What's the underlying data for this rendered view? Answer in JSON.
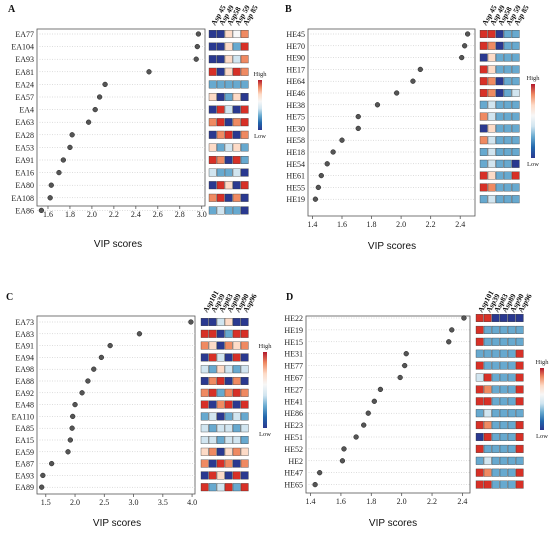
{
  "color_scale": {
    "high_label": "High",
    "low_label": "Low",
    "gradient": [
      "#b2182b",
      "#ef8a62",
      "#fddbc7",
      "#f7f7f7",
      "#d1e5f0",
      "#67a9cf",
      "#2166ac",
      "#2a3990"
    ]
  },
  "chart_data": [
    {
      "panel_label": "A",
      "type": "scatter",
      "xlabel": "VIP scores",
      "xticks": [
        1.6,
        1.8,
        2.0,
        2.2,
        2.4,
        2.6,
        2.8,
        3.0
      ],
      "xlim": [
        1.5,
        3.03
      ],
      "heat_columns": [
        "Asp 45",
        "Asp 49",
        "Asp58",
        "Asp 59",
        "Asp 85"
      ],
      "points": [
        {
          "label": "EA77",
          "vip": 2.97,
          "heat": [
            "#2a3990",
            "#2a3990",
            "#fddbc7",
            "#f7f7f7",
            "#ef8a62"
          ]
        },
        {
          "label": "EA104",
          "vip": 2.96,
          "heat": [
            "#2a3990",
            "#2a3990",
            "#fddbc7",
            "#67a9cf",
            "#d73027"
          ]
        },
        {
          "label": "EA93",
          "vip": 2.95,
          "heat": [
            "#2a3990",
            "#2a3990",
            "#fddbc7",
            "#d1e5f0",
            "#ef8a62"
          ]
        },
        {
          "label": "EA81",
          "vip": 2.52,
          "heat": [
            "#d73027",
            "#2a3990",
            "#fddbc7",
            "#d73027",
            "#ef8a62"
          ]
        },
        {
          "label": "EA24",
          "vip": 2.12,
          "heat": [
            "#67a9cf",
            "#67a9cf",
            "#67a9cf",
            "#67a9cf",
            "#67a9cf"
          ]
        },
        {
          "label": "EA57",
          "vip": 2.07,
          "heat": [
            "#fddbc7",
            "#2a3990",
            "#67a9cf",
            "#fddbc7",
            "#2a3990"
          ]
        },
        {
          "label": "EA4",
          "vip": 2.03,
          "heat": [
            "#2a3990",
            "#d73027",
            "#d1e5f0",
            "#2a3990",
            "#d73027"
          ]
        },
        {
          "label": "EA63",
          "vip": 1.97,
          "heat": [
            "#ef8a62",
            "#d73027",
            "#2a3990",
            "#ef8a62",
            "#d73027"
          ]
        },
        {
          "label": "EA28",
          "vip": 1.82,
          "heat": [
            "#2a3990",
            "#ef8a62",
            "#d73027",
            "#2a3990",
            "#ef8a62"
          ]
        },
        {
          "label": "EA53",
          "vip": 1.8,
          "heat": [
            "#fddbc7",
            "#67a9cf",
            "#d1e5f0",
            "#fddbc7",
            "#67a9cf"
          ]
        },
        {
          "label": "EA91",
          "vip": 1.74,
          "heat": [
            "#d73027",
            "#ef8a62",
            "#2a3990",
            "#d73027",
            "#67a9cf"
          ]
        },
        {
          "label": "EA16",
          "vip": 1.7,
          "heat": [
            "#d1e5f0",
            "#67a9cf",
            "#67a9cf",
            "#d1e5f0",
            "#2a3990"
          ]
        },
        {
          "label": "EA80",
          "vip": 1.63,
          "heat": [
            "#2a3990",
            "#d73027",
            "#fddbc7",
            "#2a3990",
            "#d73027"
          ]
        },
        {
          "label": "EA108",
          "vip": 1.62,
          "heat": [
            "#ef8a62",
            "#d73027",
            "#2a3990",
            "#ef8a62",
            "#2a3990"
          ]
        },
        {
          "label": "EA86",
          "vip": 1.54,
          "heat": [
            "#67a9cf",
            "#d1e5f0",
            "#67a9cf",
            "#67a9cf",
            "#2a3990"
          ]
        }
      ]
    },
    {
      "panel_label": "B",
      "type": "scatter",
      "xlabel": "VIP scores",
      "xticks": [
        1.4,
        1.6,
        1.8,
        2.0,
        2.2,
        2.4
      ],
      "xlim": [
        1.37,
        2.5
      ],
      "heat_columns": [
        "Asp 45",
        "Asp 49",
        "Asp58",
        "Asp 59",
        "Asp 85"
      ],
      "points": [
        {
          "label": "HE45",
          "vip": 2.45,
          "heat": [
            "#d73027",
            "#d73027",
            "#2a3990",
            "#67a9cf",
            "#67a9cf"
          ]
        },
        {
          "label": "HE70",
          "vip": 2.43,
          "heat": [
            "#d73027",
            "#ef8a62",
            "#2a3990",
            "#67a9cf",
            "#67a9cf"
          ]
        },
        {
          "label": "HE90",
          "vip": 2.41,
          "heat": [
            "#2a3990",
            "#fddbc7",
            "#67a9cf",
            "#67a9cf",
            "#67a9cf"
          ]
        },
        {
          "label": "HE17",
          "vip": 2.13,
          "heat": [
            "#d73027",
            "#fddbc7",
            "#67a9cf",
            "#67a9cf",
            "#67a9cf"
          ]
        },
        {
          "label": "HE64",
          "vip": 2.08,
          "heat": [
            "#d73027",
            "#ef8a62",
            "#2a3990",
            "#67a9cf",
            "#67a9cf"
          ]
        },
        {
          "label": "HE46",
          "vip": 1.97,
          "heat": [
            "#d73027",
            "#ef8a62",
            "#2a3990",
            "#67a9cf",
            "#d1e5f0"
          ]
        },
        {
          "label": "HE38",
          "vip": 1.84,
          "heat": [
            "#67a9cf",
            "#d1e5f0",
            "#67a9cf",
            "#67a9cf",
            "#67a9cf"
          ]
        },
        {
          "label": "HE75",
          "vip": 1.71,
          "heat": [
            "#ef8a62",
            "#d1e5f0",
            "#67a9cf",
            "#67a9cf",
            "#67a9cf"
          ]
        },
        {
          "label": "HE30",
          "vip": 1.71,
          "heat": [
            "#2a3990",
            "#fddbc7",
            "#67a9cf",
            "#67a9cf",
            "#67a9cf"
          ]
        },
        {
          "label": "HE58",
          "vip": 1.6,
          "heat": [
            "#ef8a62",
            "#d1e5f0",
            "#67a9cf",
            "#67a9cf",
            "#67a9cf"
          ]
        },
        {
          "label": "HE18",
          "vip": 1.54,
          "heat": [
            "#67a9cf",
            "#d1e5f0",
            "#67a9cf",
            "#67a9cf",
            "#67a9cf"
          ]
        },
        {
          "label": "HE54",
          "vip": 1.5,
          "heat": [
            "#67a9cf",
            "#d1e5f0",
            "#67a9cf",
            "#67a9cf",
            "#2a3990"
          ]
        },
        {
          "label": "HE61",
          "vip": 1.46,
          "heat": [
            "#d73027",
            "#fddbc7",
            "#67a9cf",
            "#67a9cf",
            "#d73027"
          ]
        },
        {
          "label": "HE55",
          "vip": 1.44,
          "heat": [
            "#d73027",
            "#ef8a62",
            "#67a9cf",
            "#67a9cf",
            "#67a9cf"
          ]
        },
        {
          "label": "HE19",
          "vip": 1.42,
          "heat": [
            "#67a9cf",
            "#d1e5f0",
            "#67a9cf",
            "#67a9cf",
            "#67a9cf"
          ]
        }
      ]
    },
    {
      "panel_label": "C",
      "type": "scatter",
      "xlabel": "VIP scores",
      "xticks": [
        1.5,
        2.0,
        2.5,
        3.0,
        3.5,
        4.0
      ],
      "xlim": [
        1.35,
        4.05
      ],
      "heat_columns": [
        "Asp101",
        "Asp39",
        "Asp83",
        "Asp89",
        "Asp90",
        "Asp96"
      ],
      "points": [
        {
          "label": "EA73",
          "vip": 3.98,
          "heat": [
            "#2a3990",
            "#2a3990",
            "#d1e5f0",
            "#fddbc7",
            "#2a3990",
            "#2a3990"
          ]
        },
        {
          "label": "EA83",
          "vip": 3.1,
          "heat": [
            "#d73027",
            "#d73027",
            "#2a3990",
            "#67a9cf",
            "#d73027",
            "#d73027"
          ]
        },
        {
          "label": "EA91",
          "vip": 2.6,
          "heat": [
            "#ef8a62",
            "#fddbc7",
            "#2a3990",
            "#ef8a62",
            "#fddbc7",
            "#ef8a62"
          ]
        },
        {
          "label": "EA94",
          "vip": 2.45,
          "heat": [
            "#2a3990",
            "#d73027",
            "#d1e5f0",
            "#2a3990",
            "#d73027",
            "#2a3990"
          ]
        },
        {
          "label": "EA98",
          "vip": 2.32,
          "heat": [
            "#d1e5f0",
            "#67a9cf",
            "#fddbc7",
            "#d1e5f0",
            "#67a9cf",
            "#d1e5f0"
          ]
        },
        {
          "label": "EA88",
          "vip": 2.22,
          "heat": [
            "#2a3990",
            "#ef8a62",
            "#d73027",
            "#2a3990",
            "#ef8a62",
            "#2a3990"
          ]
        },
        {
          "label": "EA92",
          "vip": 2.12,
          "heat": [
            "#ef8a62",
            "#d73027",
            "#67a9cf",
            "#ef8a62",
            "#d73027",
            "#ef8a62"
          ]
        },
        {
          "label": "EA48",
          "vip": 2.0,
          "heat": [
            "#d73027",
            "#2a3990",
            "#ef8a62",
            "#d73027",
            "#2a3990",
            "#d73027"
          ]
        },
        {
          "label": "EA110",
          "vip": 1.96,
          "heat": [
            "#67a9cf",
            "#d1e5f0",
            "#2a3990",
            "#67a9cf",
            "#d1e5f0",
            "#67a9cf"
          ]
        },
        {
          "label": "EA85",
          "vip": 1.95,
          "heat": [
            "#d1e5f0",
            "#67a9cf",
            "#d1e5f0",
            "#d1e5f0",
            "#67a9cf",
            "#d1e5f0"
          ]
        },
        {
          "label": "EA15",
          "vip": 1.92,
          "heat": [
            "#d1e5f0",
            "#d1e5f0",
            "#67a9cf",
            "#d1e5f0",
            "#d1e5f0",
            "#67a9cf"
          ]
        },
        {
          "label": "EA59",
          "vip": 1.88,
          "heat": [
            "#fddbc7",
            "#ef8a62",
            "#2a3990",
            "#fddbc7",
            "#ef8a62",
            "#fddbc7"
          ]
        },
        {
          "label": "EA87",
          "vip": 1.6,
          "heat": [
            "#ef8a62",
            "#2a3990",
            "#d73027",
            "#ef8a62",
            "#2a3990",
            "#ef8a62"
          ]
        },
        {
          "label": "EA93",
          "vip": 1.45,
          "heat": [
            "#2a3990",
            "#d73027",
            "#fddbc7",
            "#2a3990",
            "#d73027",
            "#2a3990"
          ]
        },
        {
          "label": "EA89",
          "vip": 1.43,
          "heat": [
            "#d73027",
            "#67a9cf",
            "#d1e5f0",
            "#d73027",
            "#67a9cf",
            "#d73027"
          ]
        }
      ]
    },
    {
      "panel_label": "D",
      "type": "scatter",
      "xlabel": "VIP scores",
      "xticks": [
        1.4,
        1.6,
        1.8,
        2.0,
        2.2,
        2.4
      ],
      "xlim": [
        1.37,
        2.45
      ],
      "heat_columns": [
        "Asp101",
        "Asp39",
        "Asp83",
        "Asp89",
        "Asp90",
        "Asp96"
      ],
      "points": [
        {
          "label": "HE22",
          "vip": 2.41,
          "heat": [
            "#d73027",
            "#d73027",
            "#2a3990",
            "#2a3990",
            "#2a3990",
            "#2a3990"
          ]
        },
        {
          "label": "HE19",
          "vip": 2.33,
          "heat": [
            "#d73027",
            "#67a9cf",
            "#67a9cf",
            "#67a9cf",
            "#67a9cf",
            "#67a9cf"
          ]
        },
        {
          "label": "HE15",
          "vip": 2.31,
          "heat": [
            "#d73027",
            "#67a9cf",
            "#67a9cf",
            "#67a9cf",
            "#67a9cf",
            "#67a9cf"
          ]
        },
        {
          "label": "HE31",
          "vip": 2.03,
          "heat": [
            "#67a9cf",
            "#67a9cf",
            "#67a9cf",
            "#67a9cf",
            "#67a9cf",
            "#d73027"
          ]
        },
        {
          "label": "HE77",
          "vip": 2.02,
          "heat": [
            "#d73027",
            "#67a9cf",
            "#67a9cf",
            "#67a9cf",
            "#67a9cf",
            "#d73027"
          ]
        },
        {
          "label": "HE67",
          "vip": 1.99,
          "heat": [
            "#d1e5f0",
            "#d73027",
            "#67a9cf",
            "#67a9cf",
            "#67a9cf",
            "#d73027"
          ]
        },
        {
          "label": "HE27",
          "vip": 1.86,
          "heat": [
            "#d73027",
            "#ef8a62",
            "#67a9cf",
            "#67a9cf",
            "#67a9cf",
            "#d73027"
          ]
        },
        {
          "label": "HE41",
          "vip": 1.82,
          "heat": [
            "#d73027",
            "#d73027",
            "#67a9cf",
            "#67a9cf",
            "#67a9cf",
            "#d73027"
          ]
        },
        {
          "label": "HE86",
          "vip": 1.78,
          "heat": [
            "#67a9cf",
            "#d1e5f0",
            "#67a9cf",
            "#67a9cf",
            "#67a9cf",
            "#67a9cf"
          ]
        },
        {
          "label": "HE23",
          "vip": 1.75,
          "heat": [
            "#d73027",
            "#ef8a62",
            "#67a9cf",
            "#67a9cf",
            "#67a9cf",
            "#d73027"
          ]
        },
        {
          "label": "HE51",
          "vip": 1.7,
          "heat": [
            "#2a3990",
            "#d73027",
            "#67a9cf",
            "#67a9cf",
            "#67a9cf",
            "#d73027"
          ]
        },
        {
          "label": "HE52",
          "vip": 1.62,
          "heat": [
            "#d73027",
            "#67a9cf",
            "#67a9cf",
            "#67a9cf",
            "#67a9cf",
            "#d73027"
          ]
        },
        {
          "label": "HE2",
          "vip": 1.61,
          "heat": [
            "#67a9cf",
            "#d1e5f0",
            "#67a9cf",
            "#67a9cf",
            "#67a9cf",
            "#67a9cf"
          ]
        },
        {
          "label": "HE47",
          "vip": 1.46,
          "heat": [
            "#d73027",
            "#ef8a62",
            "#67a9cf",
            "#67a9cf",
            "#67a9cf",
            "#d73027"
          ]
        },
        {
          "label": "HE65",
          "vip": 1.43,
          "heat": [
            "#d73027",
            "#d73027",
            "#67a9cf",
            "#67a9cf",
            "#67a9cf",
            "#d73027"
          ]
        }
      ]
    }
  ]
}
